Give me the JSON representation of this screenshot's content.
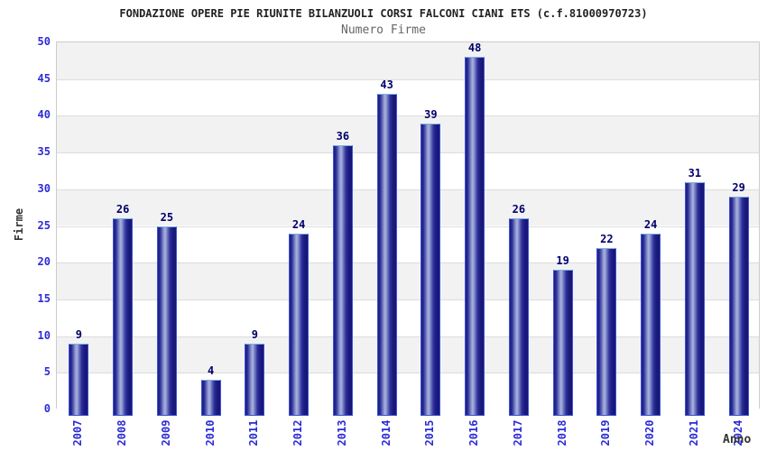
{
  "chart_data": {
    "type": "bar",
    "title": "FONDAZIONE OPERE PIE RIUNITE BILANZUOLI CORSI FALCONI CIANI ETS (c.f.81000970723)",
    "subtitle": "Numero Firme",
    "xlabel": "Anno",
    "ylabel": "Firme",
    "categories": [
      "2007",
      "2008",
      "2009",
      "2010",
      "2011",
      "2012",
      "2013",
      "2014",
      "2015",
      "2016",
      "2017",
      "2018",
      "2019",
      "2020",
      "2021",
      "2024"
    ],
    "values": [
      9,
      26,
      25,
      4,
      9,
      24,
      36,
      43,
      39,
      48,
      26,
      19,
      22,
      24,
      31,
      29
    ],
    "ylim": [
      0,
      50
    ],
    "ytick_step": 5,
    "yticks": [
      0,
      5,
      10,
      15,
      20,
      25,
      30,
      35,
      40,
      45,
      50
    ],
    "grid": true,
    "legend": "none",
    "colors": {
      "bar_dark": "#1a1a7e",
      "bar_highlight": "#aab3e0",
      "bar_border": "#3d55d8",
      "bar_border_top": "#7db0ea",
      "value_label": "#00006b",
      "axis_tick_label": "#2b2bd6",
      "axis_title": "#333333",
      "band_gray": "#f2f2f2",
      "gridline": "#dcdcdc",
      "plot_border": "#cccccc",
      "title_text": "#222222",
      "subtitle_text": "#666666"
    }
  }
}
